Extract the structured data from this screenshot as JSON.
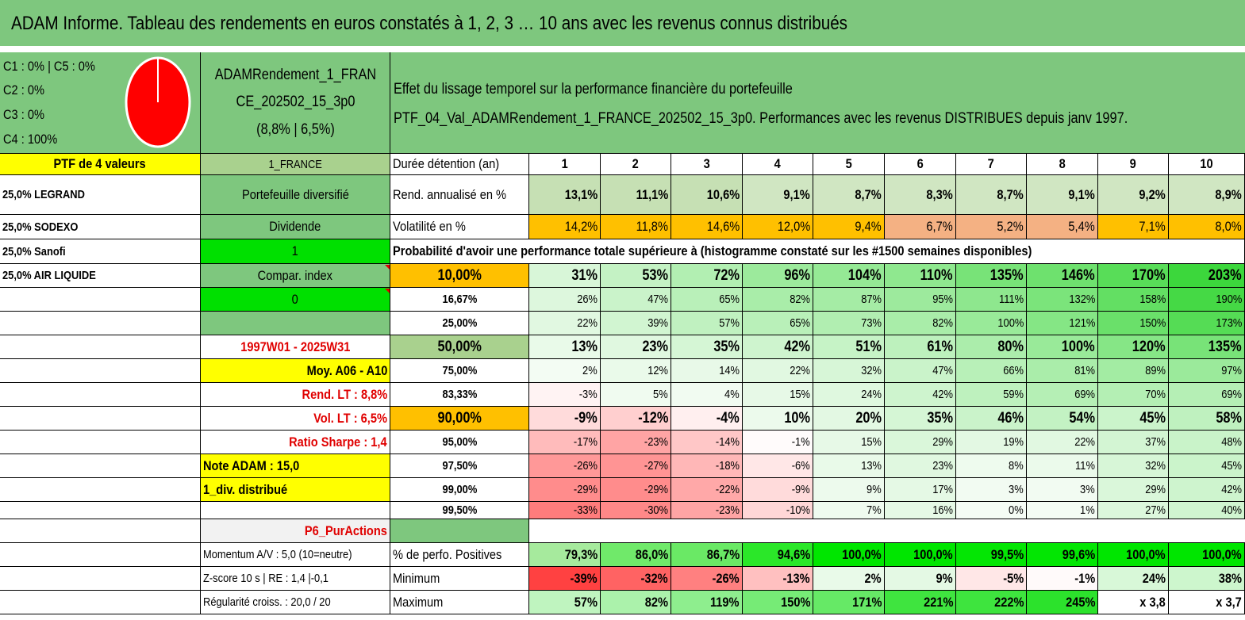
{
  "title": "ADAM Informe. Tableau des rendements en euros constatés à 1, 2, 3 … 10 ans avec les revenus connus distribués",
  "legend": [
    "C1 : 0% | C5 : 0%",
    "C2 : 0%",
    "C3 : 0%",
    "C4 : 100%"
  ],
  "pie": {
    "color": "#ff0000",
    "edge": "#ffffff",
    "slices": [
      {
        "label": "C4",
        "value": 100
      }
    ]
  },
  "fund": {
    "name_line1": "ADAMRendement_1_FRAN",
    "name_line2": "CE_202502_15_3p0",
    "perf": "(8,8% | 6,5%)"
  },
  "description": {
    "line1": "Effet du lissage temporel sur la performance financière du portefeuille",
    "line2": "PTF_04_Val_ADAMRendement_1_FRANCE_202502_15_3p0. Performances avec les revenus DISTRIBUES depuis janv 1997."
  },
  "holdings_header": "PTF de 4 valeurs",
  "holdings": [
    "25,0% LEGRAND",
    "25,0% SODEXO",
    "25,0% Sanofi",
    "25,0% AIR LIQUIDE"
  ],
  "params": {
    "region": "1_FRANCE",
    "type": "Portefeuille diversifié",
    "income": "Dividende",
    "income_value": "1",
    "compar": "Compar. index",
    "compar_value": "0",
    "period": "1997W01 - 2025W31",
    "moy": "Moy. A06 - A10",
    "rend_lt": "Rend. LT : 8,8%",
    "vol_lt": "Vol. LT : 6,5%",
    "sharpe": "Ratio Sharpe : 1,4",
    "note": "Note ADAM : 15,0",
    "div": "1_div. distribué",
    "category": "P6_PurActions",
    "momentum": "Momentum A/V : 5,0 (10=neutre)",
    "zscore": "Z-score 10 s | RE : 1,4 |-0,1",
    "regularite": "Régularité croiss. : 20,0 / 20"
  },
  "table": {
    "duration_label": "Durée détention (an)",
    "years": [
      "1",
      "2",
      "3",
      "4",
      "5",
      "6",
      "7",
      "8",
      "9",
      "10"
    ],
    "rend_label": "Rend. annualisé en %",
    "rend": [
      "13,1%",
      "11,1%",
      "10,6%",
      "9,1%",
      "8,7%",
      "8,3%",
      "8,7%",
      "9,1%",
      "9,2%",
      "8,9%"
    ],
    "vol_label": "Volatilité en %",
    "vol": [
      "14,2%",
      "11,8%",
      "14,6%",
      "12,0%",
      "9,4%",
      "6,7%",
      "5,2%",
      "5,4%",
      "7,1%",
      "8,0%"
    ],
    "proba_label": "Probabilité d'avoir une performance totale supérieure à (histogramme constaté sur les #1500 semaines disponibles)",
    "proba": [
      {
        "p": "10,00%",
        "v": [
          "31%",
          "53%",
          "72%",
          "96%",
          "104%",
          "110%",
          "135%",
          "146%",
          "170%",
          "203%"
        ]
      },
      {
        "p": "16,67%",
        "v": [
          "26%",
          "47%",
          "65%",
          "82%",
          "87%",
          "95%",
          "111%",
          "132%",
          "158%",
          "190%"
        ]
      },
      {
        "p": "25,00%",
        "v": [
          "22%",
          "39%",
          "57%",
          "65%",
          "73%",
          "82%",
          "100%",
          "121%",
          "150%",
          "173%"
        ]
      },
      {
        "p": "50,00%",
        "v": [
          "13%",
          "23%",
          "35%",
          "42%",
          "51%",
          "61%",
          "80%",
          "100%",
          "120%",
          "135%"
        ]
      },
      {
        "p": "75,00%",
        "v": [
          "2%",
          "12%",
          "14%",
          "22%",
          "32%",
          "47%",
          "66%",
          "81%",
          "89%",
          "97%"
        ]
      },
      {
        "p": "83,33%",
        "v": [
          "-3%",
          "5%",
          "4%",
          "15%",
          "24%",
          "42%",
          "59%",
          "69%",
          "70%",
          "69%"
        ]
      },
      {
        "p": "90,00%",
        "v": [
          "-9%",
          "-12%",
          "-4%",
          "10%",
          "20%",
          "35%",
          "46%",
          "54%",
          "45%",
          "58%"
        ]
      },
      {
        "p": "95,00%",
        "v": [
          "-17%",
          "-23%",
          "-14%",
          "-1%",
          "15%",
          "29%",
          "19%",
          "22%",
          "37%",
          "48%"
        ]
      },
      {
        "p": "97,50%",
        "v": [
          "-26%",
          "-27%",
          "-18%",
          "-6%",
          "13%",
          "23%",
          "8%",
          "11%",
          "32%",
          "45%"
        ]
      },
      {
        "p": "99,00%",
        "v": [
          "-29%",
          "-29%",
          "-22%",
          "-9%",
          "9%",
          "17%",
          "3%",
          "3%",
          "29%",
          "42%"
        ]
      },
      {
        "p": "99,50%",
        "v": [
          "-33%",
          "-30%",
          "-23%",
          "-10%",
          "7%",
          "16%",
          "0%",
          "1%",
          "27%",
          "40%"
        ]
      }
    ],
    "pos_label": "% de perfo. Positives",
    "pos": [
      "79,3%",
      "86,0%",
      "86,7%",
      "94,6%",
      "100,0%",
      "100,0%",
      "99,5%",
      "99,6%",
      "100,0%",
      "100,0%"
    ],
    "min_label": "Minimum",
    "min": [
      "-39%",
      "-32%",
      "-26%",
      "-13%",
      "2%",
      "9%",
      "-5%",
      "-1%",
      "24%",
      "38%"
    ],
    "max_label": "Maximum",
    "max": [
      "57%",
      "82%",
      "119%",
      "150%",
      "171%",
      "221%",
      "222%",
      "245%",
      "x 3,8",
      "x 3,7"
    ]
  }
}
